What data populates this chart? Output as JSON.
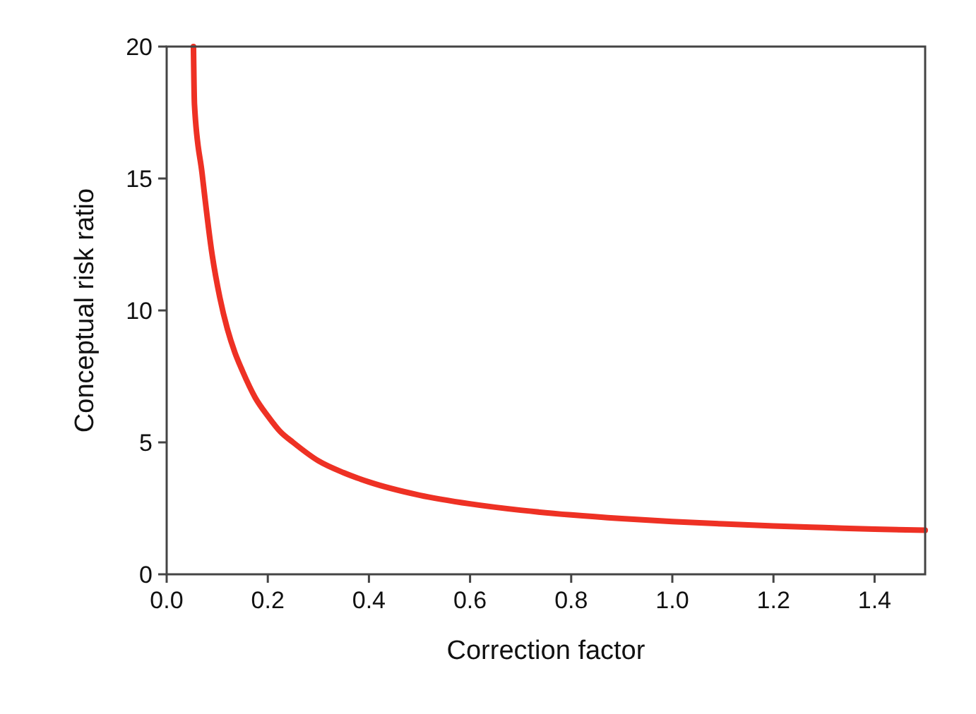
{
  "chart_data": {
    "type": "line",
    "xlabel": "Correction factor",
    "ylabel": "Conceptual risk ratio",
    "series": [
      {
        "color": "#ee3124",
        "x": [
          0.053,
          0.055,
          0.07,
          0.09,
          0.105,
          0.12,
          0.135,
          0.15,
          0.175,
          0.2,
          0.225,
          0.25,
          0.3,
          0.35,
          0.4,
          0.5,
          0.6,
          0.7,
          0.8,
          0.9,
          1.0,
          1.1,
          1.2,
          1.3,
          1.4,
          1.5
        ],
        "values": [
          20,
          17.8,
          15.2,
          12.1,
          10.5,
          9.3,
          8.4,
          7.7,
          6.7,
          6.0,
          5.4,
          5.0,
          4.3,
          3.85,
          3.5,
          3.0,
          2.67,
          2.43,
          2.25,
          2.11,
          2.0,
          1.91,
          1.83,
          1.77,
          1.71,
          1.67
        ]
      }
    ],
    "xlim": [
      0,
      1.5
    ],
    "xticks": [
      {
        "value": 0,
        "label": "0.0"
      },
      0.2,
      0.4,
      0.6,
      0.8,
      {
        "value": 1,
        "label": "1.0"
      },
      1.2,
      1.4
    ],
    "ylim": [
      0,
      20
    ],
    "yticks": [
      0,
      5,
      10,
      15,
      20
    ],
    "grid": false
  }
}
